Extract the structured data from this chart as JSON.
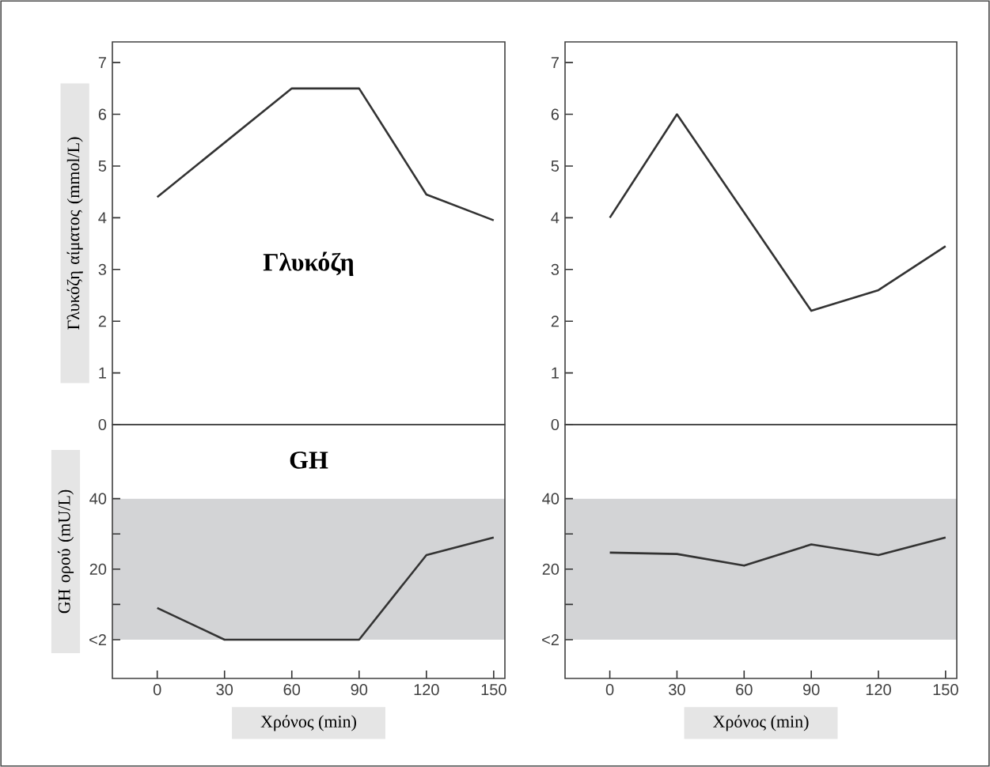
{
  "chart_data": [
    {
      "type": "line",
      "ylabel": "Γλυκόζη αίματος (mmol/L)",
      "annotations": [
        "Γλυκόζη"
      ],
      "x": [
        0,
        30,
        60,
        90,
        120,
        150
      ],
      "xlim": [
        -20,
        155
      ],
      "ylim": [
        0,
        7.4
      ],
      "yticks": [
        0,
        1,
        2,
        3,
        4,
        5,
        6,
        7
      ],
      "tick_labels": "y",
      "series": [
        {
          "color": "#333333",
          "values": [
            4.4,
            5.45,
            6.5,
            6.5,
            4.45,
            3.95
          ]
        }
      ]
    },
    {
      "type": "line",
      "x": [
        0,
        30,
        60,
        90,
        120,
        150
      ],
      "xlim": [
        -20,
        155
      ],
      "ylim": [
        0,
        7.4
      ],
      "yticks": [
        0,
        1,
        2,
        3,
        4,
        5,
        6,
        7
      ],
      "tick_labels": "y",
      "series": [
        {
          "color": "#333333",
          "values": [
            4.0,
            6.0,
            4.1,
            2.2,
            2.6,
            3.45
          ]
        }
      ]
    },
    {
      "type": "line",
      "ylabel": "GH ορού (mU/L)",
      "xlabel": "Χρόνος (min)",
      "annotations": [
        "GH"
      ],
      "x": [
        0,
        30,
        60,
        90,
        120,
        150
      ],
      "xlim": [
        -20,
        155
      ],
      "ylim": [
        -11,
        61
      ],
      "xticks": [
        0,
        30,
        60,
        90,
        120,
        150
      ],
      "yticks": [
        {
          "value": 0,
          "label": "<2"
        },
        {
          "value": 10,
          "label": null
        },
        20,
        {
          "value": 30,
          "label": null
        },
        40
      ],
      "bands": [
        {
          "axis": "y",
          "from": 0,
          "to": 40,
          "color": "#d3d4d6"
        }
      ],
      "series": [
        {
          "color": "#333333",
          "values": [
            9,
            0,
            0,
            0,
            24,
            29
          ]
        }
      ]
    },
    {
      "type": "line",
      "xlabel": "Χρόνος (min)",
      "x": [
        0,
        30,
        60,
        90,
        120,
        150
      ],
      "xlim": [
        -20,
        155
      ],
      "ylim": [
        -11,
        61
      ],
      "xticks": [
        0,
        30,
        60,
        90,
        120,
        150
      ],
      "yticks": [
        {
          "value": 0,
          "label": "<2"
        },
        {
          "value": 10,
          "label": null
        },
        20,
        {
          "value": 30,
          "label": null
        },
        40
      ],
      "bands": [
        {
          "axis": "y",
          "from": 0,
          "to": 40,
          "color": "#d3d4d6"
        }
      ],
      "series": [
        {
          "color": "#333333",
          "values": [
            24.7,
            24.3,
            21,
            27,
            24,
            29
          ]
        }
      ]
    }
  ]
}
